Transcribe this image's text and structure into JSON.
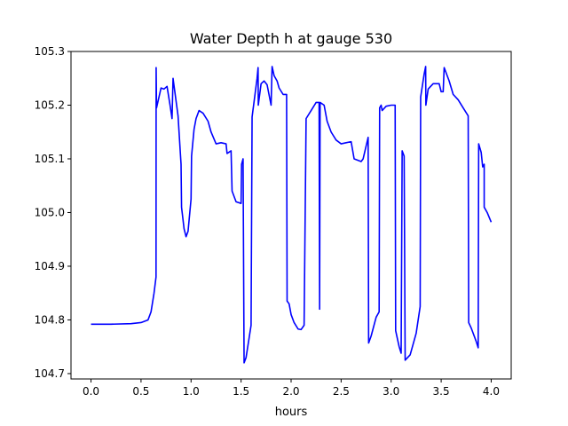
{
  "chart_data": {
    "type": "line",
    "title": "Water Depth h at gauge 530",
    "xlabel": "hours",
    "ylabel": "",
    "xlim": [
      -0.2,
      4.2
    ],
    "ylim": [
      104.69,
      105.3
    ],
    "xticks": [
      0.0,
      0.5,
      1.0,
      1.5,
      2.0,
      2.5,
      3.0,
      3.5,
      4.0
    ],
    "xtick_labels": [
      "0.0",
      "0.5",
      "1.0",
      "1.5",
      "2.0",
      "2.5",
      "3.0",
      "3.5",
      "4.0"
    ],
    "yticks": [
      104.7,
      104.8,
      104.9,
      105.0,
      105.1,
      105.2,
      105.3
    ],
    "ytick_labels": [
      "104.7",
      "104.8",
      "104.9",
      "105.0",
      "105.1",
      "105.2",
      "105.3"
    ],
    "grid": false,
    "series": [
      {
        "color": "#0000ff",
        "points": [
          [
            0.0,
            104.792
          ],
          [
            0.2,
            104.792
          ],
          [
            0.4,
            104.793
          ],
          [
            0.5,
            104.795
          ],
          [
            0.57,
            104.8
          ],
          [
            0.6,
            104.815
          ],
          [
            0.63,
            104.85
          ],
          [
            0.65,
            104.88
          ],
          [
            0.651,
            105.27
          ],
          [
            0.655,
            105.195
          ],
          [
            0.7,
            105.232
          ],
          [
            0.73,
            105.23
          ],
          [
            0.76,
            105.235
          ],
          [
            0.79,
            105.2
          ],
          [
            0.81,
            105.175
          ],
          [
            0.82,
            105.25
          ],
          [
            0.87,
            105.18
          ],
          [
            0.9,
            105.09
          ],
          [
            0.905,
            105.01
          ],
          [
            0.93,
            104.97
          ],
          [
            0.95,
            104.955
          ],
          [
            0.97,
            104.965
          ],
          [
            1.0,
            105.025
          ],
          [
            1.005,
            105.105
          ],
          [
            1.03,
            105.155
          ],
          [
            1.05,
            105.175
          ],
          [
            1.08,
            105.19
          ],
          [
            1.12,
            105.185
          ],
          [
            1.17,
            105.17
          ],
          [
            1.2,
            105.15
          ],
          [
            1.25,
            105.128
          ],
          [
            1.3,
            105.13
          ],
          [
            1.35,
            105.128
          ],
          [
            1.36,
            105.11
          ],
          [
            1.4,
            105.115
          ],
          [
            1.41,
            105.04
          ],
          [
            1.45,
            105.02
          ],
          [
            1.5,
            105.017
          ],
          [
            1.505,
            105.09
          ],
          [
            1.52,
            105.1
          ],
          [
            1.53,
            104.72
          ],
          [
            1.55,
            104.73
          ],
          [
            1.6,
            104.79
          ],
          [
            1.61,
            105.178
          ],
          [
            1.66,
            105.25
          ],
          [
            1.67,
            105.27
          ],
          [
            1.672,
            105.2
          ],
          [
            1.7,
            105.24
          ],
          [
            1.73,
            105.245
          ],
          [
            1.76,
            105.238
          ],
          [
            1.8,
            105.2
          ],
          [
            1.81,
            105.272
          ],
          [
            1.83,
            105.255
          ],
          [
            1.86,
            105.245
          ],
          [
            1.88,
            105.232
          ],
          [
            1.92,
            105.22
          ],
          [
            1.955,
            105.22
          ],
          [
            1.96,
            104.835
          ],
          [
            1.98,
            104.83
          ],
          [
            2.0,
            104.81
          ],
          [
            2.03,
            104.795
          ],
          [
            2.07,
            104.783
          ],
          [
            2.1,
            104.782
          ],
          [
            2.13,
            104.79
          ],
          [
            2.15,
            105.175
          ],
          [
            2.2,
            105.19
          ],
          [
            2.25,
            105.205
          ],
          [
            2.28,
            105.205
          ],
          [
            2.285,
            104.82
          ],
          [
            2.29,
            105.205
          ],
          [
            2.33,
            105.2
          ],
          [
            2.36,
            105.17
          ],
          [
            2.4,
            105.15
          ],
          [
            2.45,
            105.135
          ],
          [
            2.5,
            105.128
          ],
          [
            2.55,
            105.13
          ],
          [
            2.6,
            105.132
          ],
          [
            2.63,
            105.1
          ],
          [
            2.7,
            105.095
          ],
          [
            2.72,
            105.1
          ],
          [
            2.77,
            105.14
          ],
          [
            2.775,
            104.757
          ],
          [
            2.8,
            104.77
          ],
          [
            2.85,
            104.805
          ],
          [
            2.88,
            104.815
          ],
          [
            2.885,
            105.195
          ],
          [
            2.9,
            105.2
          ],
          [
            2.91,
            105.19
          ],
          [
            2.95,
            105.198
          ],
          [
            3.0,
            105.2
          ],
          [
            3.04,
            105.2
          ],
          [
            3.045,
            104.78
          ],
          [
            3.08,
            104.75
          ],
          [
            3.1,
            104.738
          ],
          [
            3.11,
            105.115
          ],
          [
            3.13,
            105.105
          ],
          [
            3.14,
            104.725
          ],
          [
            3.19,
            104.735
          ],
          [
            3.25,
            104.775
          ],
          [
            3.29,
            104.825
          ],
          [
            3.295,
            105.215
          ],
          [
            3.33,
            105.258
          ],
          [
            3.345,
            105.272
          ],
          [
            3.347,
            105.2
          ],
          [
            3.37,
            105.23
          ],
          [
            3.42,
            105.24
          ],
          [
            3.48,
            105.24
          ],
          [
            3.5,
            105.225
          ],
          [
            3.52,
            105.225
          ],
          [
            3.53,
            105.27
          ],
          [
            3.58,
            105.245
          ],
          [
            3.62,
            105.22
          ],
          [
            3.67,
            105.21
          ],
          [
            3.72,
            105.195
          ],
          [
            3.77,
            105.18
          ],
          [
            3.775,
            104.795
          ],
          [
            3.8,
            104.785
          ],
          [
            3.85,
            104.76
          ],
          [
            3.87,
            104.748
          ],
          [
            3.875,
            105.128
          ],
          [
            3.9,
            105.112
          ],
          [
            3.915,
            105.085
          ],
          [
            3.93,
            105.09
          ],
          [
            3.93,
            105.01
          ],
          [
            3.96,
            105.0
          ],
          [
            4.0,
            104.982
          ]
        ]
      }
    ]
  }
}
